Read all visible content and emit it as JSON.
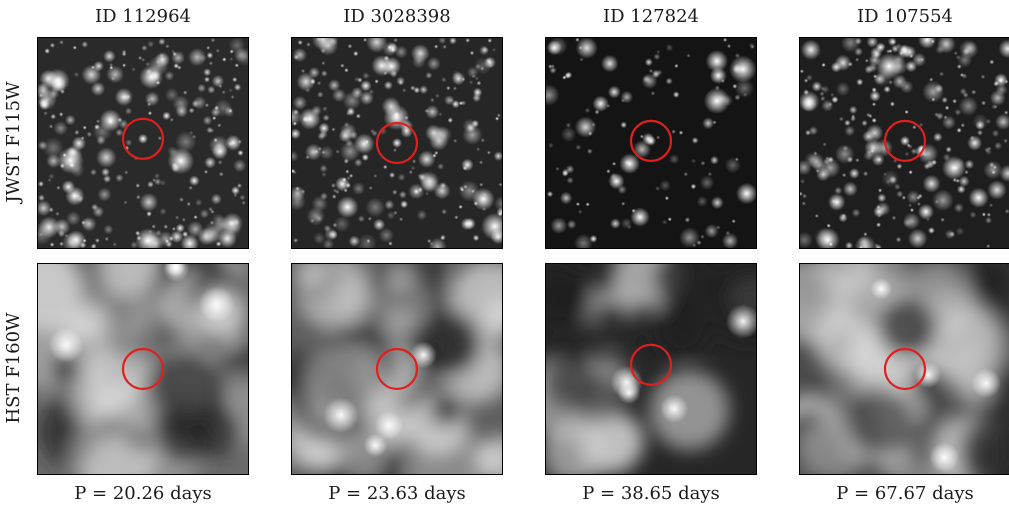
{
  "columns": [
    {
      "id_label": "ID 112964",
      "period_label": "P = 20.26 days"
    },
    {
      "id_label": "ID 3028398",
      "period_label": "P = 23.63 days"
    },
    {
      "id_label": "ID 127824",
      "period_label": "P = 38.65 days"
    },
    {
      "id_label": "ID 107554",
      "period_label": "P = 67.67 days"
    }
  ],
  "rows": [
    {
      "label": "JWST F115W"
    },
    {
      "label": "HST F160W"
    }
  ],
  "colors": {
    "marker_circle": "#e0201e",
    "background": "#ffffff",
    "frame": "#000000"
  }
}
